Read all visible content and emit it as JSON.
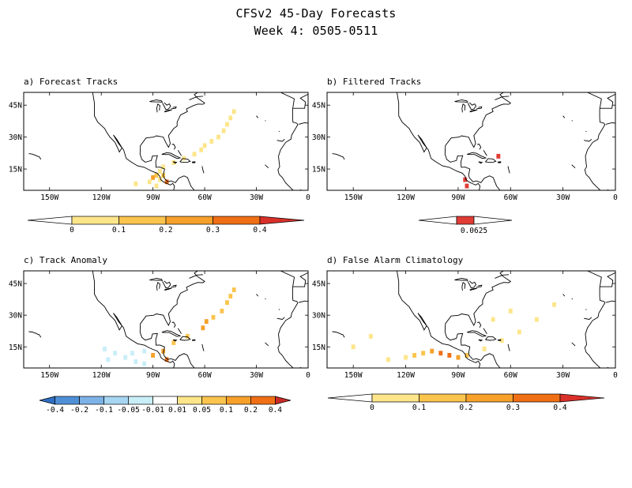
{
  "title_line1": "CFSv2 45-Day Forecasts",
  "title_line2": "Week 4: 0505-0511",
  "axes": {
    "lon_ticks": [
      {
        "value": -150,
        "label": "150W"
      },
      {
        "value": -120,
        "label": "120W"
      },
      {
        "value": -90,
        "label": "90W"
      },
      {
        "value": -60,
        "label": "60W"
      },
      {
        "value": -30,
        "label": "30W"
      },
      {
        "value": 0,
        "label": "0"
      }
    ],
    "lat_ticks": [
      {
        "value": 45,
        "label": "45N"
      },
      {
        "value": 30,
        "label": "30N"
      },
      {
        "value": 15,
        "label": "15N"
      }
    ],
    "lon_range": [
      -165,
      0
    ],
    "lat_range": [
      5,
      51
    ]
  },
  "panels": [
    {
      "id": "a",
      "title": "a) Forecast Tracks",
      "colorbar": {
        "labels": [
          "0",
          "0.1",
          "0.2",
          "0.3",
          "0.4"
        ],
        "colors": [
          "#ffffff",
          "#fde58a",
          "#fbc44d",
          "#f7a02a",
          "#f06f15",
          "#d9302a"
        ]
      },
      "chart_data": {
        "type": "heatmap",
        "value_range": [
          0,
          0.4
        ],
        "cells": [
          {
            "lon": -43,
            "lat": 42,
            "value": 0.05
          },
          {
            "lon": -45,
            "lat": 39,
            "value": 0.05
          },
          {
            "lon": -47,
            "lat": 36,
            "value": 0.05
          },
          {
            "lon": -49,
            "lat": 33,
            "value": 0.05
          },
          {
            "lon": -52,
            "lat": 30,
            "value": 0.05
          },
          {
            "lon": -56,
            "lat": 28,
            "value": 0.05
          },
          {
            "lon": -60,
            "lat": 26,
            "value": 0.08
          },
          {
            "lon": -62,
            "lat": 24,
            "value": 0.05
          },
          {
            "lon": -66,
            "lat": 22,
            "value": 0.05
          },
          {
            "lon": -72,
            "lat": 20,
            "value": 0.05
          },
          {
            "lon": -78,
            "lat": 18,
            "value": 0.05
          },
          {
            "lon": -84,
            "lat": 16,
            "value": 0.05
          },
          {
            "lon": -86,
            "lat": 14,
            "value": 0.08
          },
          {
            "lon": -84,
            "lat": 12,
            "value": 0.15
          },
          {
            "lon": -88,
            "lat": 12,
            "value": 0.12
          },
          {
            "lon": -90,
            "lat": 11,
            "value": 0.22
          },
          {
            "lon": -86,
            "lat": 10,
            "value": 0.08
          },
          {
            "lon": -82,
            "lat": 9,
            "value": 0.32
          },
          {
            "lon": -92,
            "lat": 9,
            "value": 0.05
          },
          {
            "lon": -100,
            "lat": 8,
            "value": 0.05
          },
          {
            "lon": -88,
            "lat": 7,
            "value": 0.05
          }
        ]
      }
    },
    {
      "id": "b",
      "title": "b) Filtered Tracks",
      "colorbar": {
        "labels": [
          "0.0625"
        ],
        "colors": [
          "#ffffff",
          "#e03c36",
          "#ffffff"
        ]
      },
      "chart_data": {
        "type": "heatmap",
        "value_range": [
          0,
          0.0625
        ],
        "cells": [
          {
            "lon": -67,
            "lat": 21,
            "value": 0.0625
          },
          {
            "lon": -86,
            "lat": 10,
            "value": 0.0625
          },
          {
            "lon": -85,
            "lat": 7,
            "value": 0.0625
          }
        ]
      }
    },
    {
      "id": "c",
      "title": "c) Track Anomaly",
      "colorbar": {
        "labels": [
          "-0.4",
          "-0.2",
          "-0.1",
          "-0.05",
          "-0.01",
          "0.01",
          "0.05",
          "0.1",
          "0.2",
          "0.4"
        ],
        "colors": [
          "#2f6fc4",
          "#4f8fd6",
          "#7db2e6",
          "#a6d6f2",
          "#c8eef8",
          "#ffffff",
          "#fde58a",
          "#fbc44d",
          "#f7a02a",
          "#f06f15",
          "#c92b26"
        ]
      },
      "chart_data": {
        "type": "heatmap",
        "value_range": [
          -0.4,
          0.4
        ],
        "cells": [
          {
            "lon": -43,
            "lat": 42,
            "value": 0.05
          },
          {
            "lon": -45,
            "lat": 39,
            "value": 0.05
          },
          {
            "lon": -47,
            "lat": 36,
            "value": 0.05
          },
          {
            "lon": -50,
            "lat": 32,
            "value": 0.05
          },
          {
            "lon": -55,
            "lat": 29,
            "value": 0.08
          },
          {
            "lon": -59,
            "lat": 27,
            "value": 0.12
          },
          {
            "lon": -61,
            "lat": 24,
            "value": 0.12
          },
          {
            "lon": -70,
            "lat": 20,
            "value": 0.05
          },
          {
            "lon": -78,
            "lat": 17,
            "value": 0.05
          },
          {
            "lon": -84,
            "lat": 13,
            "value": 0.12
          },
          {
            "lon": -90,
            "lat": 11,
            "value": 0.18
          },
          {
            "lon": -82,
            "lat": 9,
            "value": 0.2
          },
          {
            "lon": -118,
            "lat": 14,
            "value": -0.03
          },
          {
            "lon": -112,
            "lat": 12,
            "value": -0.03
          },
          {
            "lon": -106,
            "lat": 10,
            "value": -0.03
          },
          {
            "lon": -100,
            "lat": 8,
            "value": -0.03
          },
          {
            "lon": -95,
            "lat": 7,
            "value": -0.03
          },
          {
            "lon": -116,
            "lat": 9,
            "value": -0.03
          },
          {
            "lon": -102,
            "lat": 12,
            "value": -0.03
          },
          {
            "lon": -95,
            "lat": 13,
            "value": -0.03
          }
        ]
      }
    },
    {
      "id": "d",
      "title": "d) False Alarm Climatology",
      "colorbar": {
        "labels": [
          "0",
          "0.1",
          "0.2",
          "0.3",
          "0.4"
        ],
        "colors": [
          "#ffffff",
          "#fde58a",
          "#fbc44d",
          "#f7a02a",
          "#f06f15",
          "#d9302a"
        ]
      },
      "chart_data": {
        "type": "heatmap",
        "value_range": [
          0,
          0.4
        ],
        "cells": [
          {
            "lon": -100,
            "lat": 12,
            "value": 0.32
          },
          {
            "lon": -95,
            "lat": 11,
            "value": 0.38
          },
          {
            "lon": -105,
            "lat": 13,
            "value": 0.25
          },
          {
            "lon": -90,
            "lat": 10,
            "value": 0.22
          },
          {
            "lon": -110,
            "lat": 12,
            "value": 0.15
          },
          {
            "lon": -115,
            "lat": 11,
            "value": 0.12
          },
          {
            "lon": -85,
            "lat": 11,
            "value": 0.12
          },
          {
            "lon": -120,
            "lat": 10,
            "value": 0.05
          },
          {
            "lon": -130,
            "lat": 9,
            "value": 0.05
          },
          {
            "lon": -75,
            "lat": 14,
            "value": 0.08
          },
          {
            "lon": -65,
            "lat": 18,
            "value": 0.05
          },
          {
            "lon": -55,
            "lat": 22,
            "value": 0.05
          },
          {
            "lon": -45,
            "lat": 28,
            "value": 0.05
          },
          {
            "lon": -60,
            "lat": 32,
            "value": 0.05
          },
          {
            "lon": -70,
            "lat": 28,
            "value": 0.05
          },
          {
            "lon": -35,
            "lat": 35,
            "value": 0.05
          },
          {
            "lon": -150,
            "lat": 15,
            "value": 0.05
          },
          {
            "lon": -140,
            "lat": 20,
            "value": 0.05
          }
        ]
      }
    }
  ]
}
